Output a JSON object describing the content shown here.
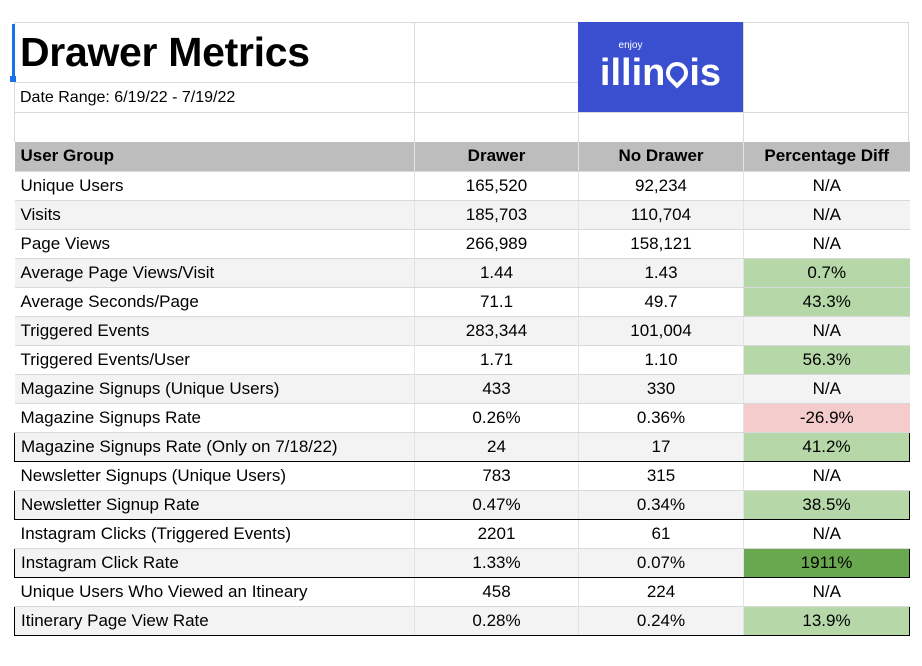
{
  "title": "Drawer Metrics",
  "date_range": "Date Range: 6/19/22 - 7/19/22",
  "logo": {
    "small": "enjoy",
    "main_left": "illin",
    "main_right": "is",
    "bg_color": "#3a4fcf"
  },
  "table": {
    "headers": [
      "User Group",
      "Drawer",
      "No Drawer",
      "Percentage Diff"
    ],
    "rows": [
      {
        "label": "Unique Users",
        "drawer": "165,520",
        "no_drawer": "92,234",
        "diff": "N/A"
      },
      {
        "label": "Visits",
        "drawer": "185,703",
        "no_drawer": "110,704",
        "diff": "N/A"
      },
      {
        "label": "Page Views",
        "drawer": "266,989",
        "no_drawer": "158,121",
        "diff": "N/A"
      },
      {
        "label": "Average Page Views/Visit",
        "drawer": "1.44",
        "no_drawer": "1.43",
        "diff": "0.7%"
      },
      {
        "label": "Average Seconds/Page",
        "drawer": "71.1",
        "no_drawer": "49.7",
        "diff": "43.3%"
      },
      {
        "label": "Triggered Events",
        "drawer": "283,344",
        "no_drawer": "101,004",
        "diff": "N/A"
      },
      {
        "label": "Triggered Events/User",
        "drawer": "1.71",
        "no_drawer": "1.10",
        "diff": "56.3%"
      },
      {
        "label": "Magazine Signups (Unique Users)",
        "drawer": "433",
        "no_drawer": "330",
        "diff": "N/A"
      },
      {
        "label": "Magazine Signups Rate",
        "drawer": "0.26%",
        "no_drawer": "0.36%",
        "diff": "-26.9%"
      },
      {
        "label": "Magazine Signups Rate (Only on 7/18/22)",
        "drawer": "24",
        "no_drawer": "17",
        "diff": "41.2%"
      },
      {
        "label": "Newsletter Signups (Unique Users)",
        "drawer": "783",
        "no_drawer": "315",
        "diff": "N/A"
      },
      {
        "label": "Newsletter Signup Rate",
        "drawer": "0.47%",
        "no_drawer": "0.34%",
        "diff": "38.5%"
      },
      {
        "label": "Instagram Clicks (Triggered Events)",
        "drawer": "2201",
        "no_drawer": "61",
        "diff": "N/A"
      },
      {
        "label": "Instagram Click Rate",
        "drawer": "1.33%",
        "no_drawer": "0.07%",
        "diff": "1911%"
      },
      {
        "label": "Unique Users Who Viewed an Itineary",
        "drawer": "458",
        "no_drawer": "224",
        "diff": "N/A"
      },
      {
        "label": "Itinerary Page View Rate",
        "drawer": "0.28%",
        "no_drawer": "0.24%",
        "diff": "13.9%"
      }
    ]
  },
  "colors": {
    "positive": "#b6d7a8",
    "negative": "#f4cccc",
    "strong_positive": "#6aa84f",
    "header_bg": "#bdbdbd",
    "alt_row": "#f3f3f3"
  }
}
